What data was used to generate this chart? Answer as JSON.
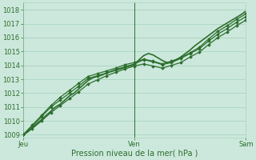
{
  "title": "",
  "xlabel": "Pression niveau de la mer( hPa )",
  "bg_color": "#cce8dc",
  "grid_color": "#aad4c0",
  "line_color": "#2d6e2d",
  "ylim": [
    1008.8,
    1018.5
  ],
  "xlim": [
    0,
    48
  ],
  "yticks": [
    1009,
    1010,
    1011,
    1012,
    1013,
    1014,
    1015,
    1016,
    1017,
    1018
  ],
  "xtick_positions": [
    0,
    24,
    48
  ],
  "xtick_labels": [
    "Jeu",
    "Ven",
    "Sam"
  ],
  "series1_x": [
    0,
    1,
    2,
    3,
    4,
    5,
    6,
    7,
    8,
    9,
    10,
    11,
    12,
    13,
    14,
    15,
    16,
    17,
    18,
    19,
    20,
    21,
    22,
    23,
    24,
    25,
    26,
    27,
    28,
    29,
    30,
    31,
    32,
    33,
    34,
    35,
    36,
    37,
    38,
    39,
    40,
    41,
    42,
    43,
    44,
    45,
    46,
    47,
    48
  ],
  "series1_y": [
    1009.0,
    1009.2,
    1009.5,
    1009.8,
    1010.1,
    1010.4,
    1010.7,
    1011.0,
    1011.2,
    1011.5,
    1011.8,
    1012.0,
    1012.3,
    1012.6,
    1012.9,
    1013.1,
    1013.2,
    1013.3,
    1013.45,
    1013.55,
    1013.65,
    1013.75,
    1013.85,
    1013.95,
    1014.05,
    1014.4,
    1014.7,
    1014.85,
    1014.75,
    1014.55,
    1014.35,
    1014.2,
    1014.25,
    1014.4,
    1014.6,
    1014.85,
    1015.1,
    1015.4,
    1015.65,
    1015.9,
    1016.15,
    1016.4,
    1016.65,
    1016.85,
    1017.05,
    1017.25,
    1017.45,
    1017.65,
    1017.9
  ],
  "series2_x": [
    0,
    2,
    4,
    6,
    8,
    10,
    12,
    14,
    16,
    18,
    20,
    22,
    24,
    26,
    28,
    30,
    32,
    34,
    36,
    38,
    40,
    42,
    44,
    46,
    48
  ],
  "series2_y": [
    1009.0,
    1009.6,
    1010.3,
    1011.0,
    1011.5,
    1012.0,
    1012.5,
    1013.05,
    1013.25,
    1013.45,
    1013.7,
    1013.9,
    1014.1,
    1014.4,
    1014.25,
    1014.05,
    1014.2,
    1014.5,
    1014.85,
    1015.2,
    1015.75,
    1016.25,
    1016.65,
    1017.1,
    1017.5
  ],
  "series3_x": [
    0,
    2,
    4,
    6,
    8,
    10,
    12,
    14,
    16,
    18,
    20,
    22,
    24,
    26,
    28,
    30,
    32,
    34,
    36,
    38,
    40,
    42,
    44,
    46,
    48
  ],
  "series3_y": [
    1009.0,
    1009.45,
    1010.0,
    1010.6,
    1011.1,
    1011.6,
    1012.1,
    1012.65,
    1012.95,
    1013.25,
    1013.5,
    1013.75,
    1013.95,
    1014.1,
    1013.95,
    1013.8,
    1014.0,
    1014.2,
    1014.6,
    1014.95,
    1015.5,
    1016.0,
    1016.4,
    1016.85,
    1017.25
  ],
  "series4_x": [
    0,
    2,
    4,
    6,
    8,
    10,
    12,
    14,
    16,
    18,
    20,
    22,
    24,
    26,
    28,
    30,
    32,
    34,
    36,
    38,
    40,
    42,
    44,
    46,
    48
  ],
  "series4_y": [
    1009.0,
    1009.7,
    1010.4,
    1011.1,
    1011.7,
    1012.2,
    1012.7,
    1013.2,
    1013.4,
    1013.6,
    1013.8,
    1014.05,
    1014.2,
    1014.45,
    1014.3,
    1014.1,
    1014.3,
    1014.55,
    1014.9,
    1015.3,
    1015.9,
    1016.45,
    1016.85,
    1017.3,
    1017.7
  ],
  "vline_x": [
    0,
    24,
    48
  ]
}
